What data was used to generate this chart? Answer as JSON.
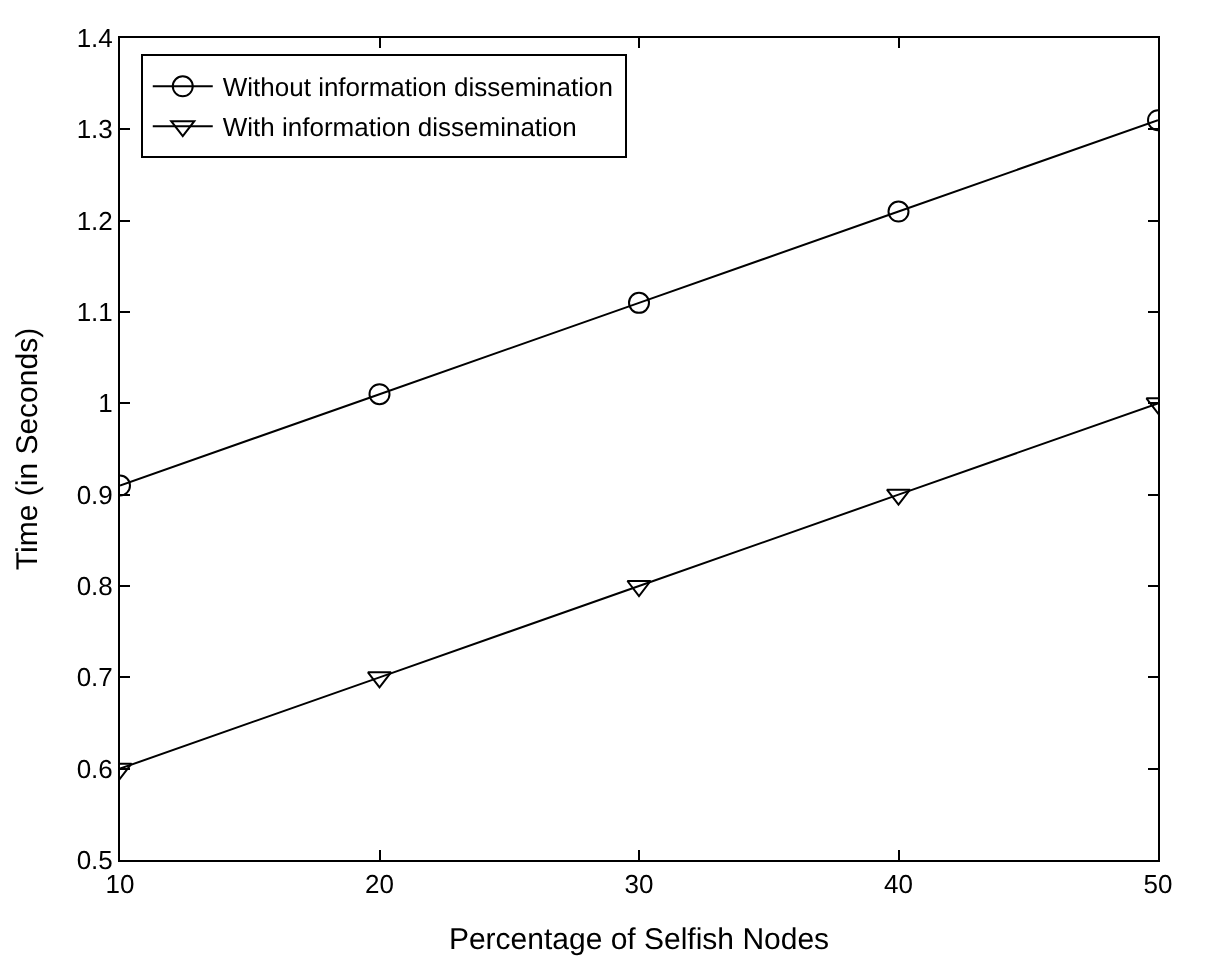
{
  "chart_data": {
    "type": "line",
    "xlabel": "Percentage of Selfish Nodes",
    "ylabel": "Time (in Seconds)",
    "x": [
      10,
      20,
      30,
      40,
      50
    ],
    "series": [
      {
        "name": "Without information dissemination",
        "color": "#000000",
        "marker": "circle",
        "values": [
          0.91,
          1.01,
          1.11,
          1.21,
          1.31
        ]
      },
      {
        "name": "With information dissemination",
        "color": "#000000",
        "marker": "triangle",
        "values": [
          0.6,
          0.7,
          0.8,
          0.9,
          1.0
        ]
      }
    ],
    "xlim": [
      10,
      50
    ],
    "xticks": [
      10,
      20,
      30,
      40,
      50
    ],
    "ylim": [
      0.5,
      1.4
    ],
    "yticks": [
      0.5,
      0.6,
      0.7,
      0.8,
      0.9,
      1,
      1.1,
      1.2,
      1.3,
      1.4
    ],
    "legend": "top left",
    "line_style": "solid"
  }
}
